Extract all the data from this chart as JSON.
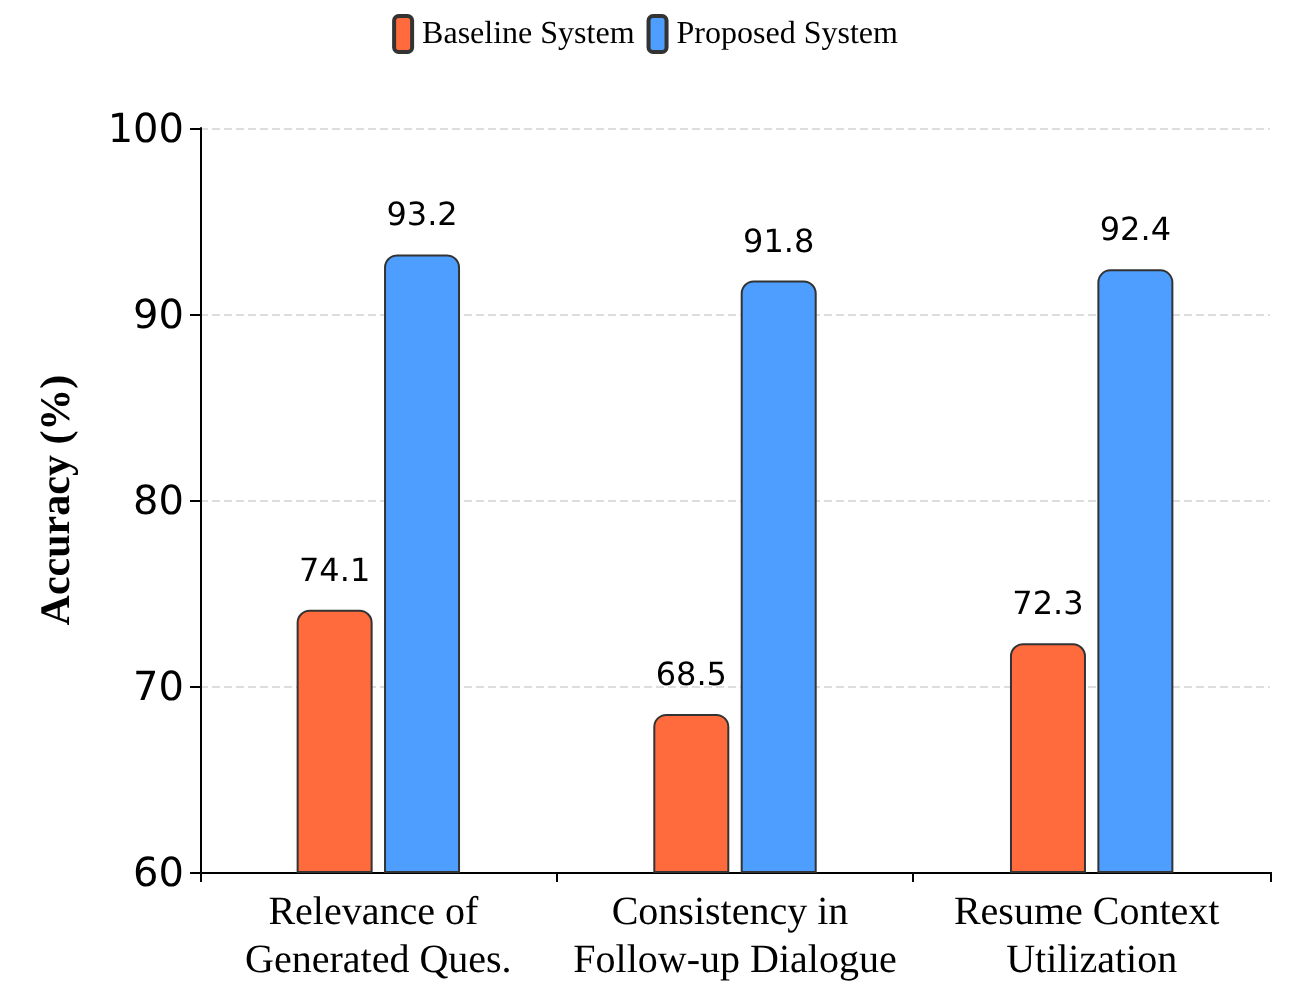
{
  "chart_data": {
    "type": "bar",
    "ylabel": "Accuracy (%)",
    "categories": [
      "Relevance of Generated Ques.",
      "Consistency in Follow-up Dialogue",
      "Resume Context Utilization"
    ],
    "series": [
      {
        "name": "Baseline System",
        "color": "#ff6b3d",
        "values": [
          74.1,
          68.5,
          72.3
        ]
      },
      {
        "name": "Proposed System",
        "color": "#4d9eff",
        "values": [
          93.2,
          91.8,
          92.4
        ]
      }
    ],
    "ylim": [
      60,
      100
    ],
    "yticks": [
      60,
      70,
      80,
      90,
      100
    ],
    "grid": "y",
    "legend": "top",
    "data_labels": true
  }
}
